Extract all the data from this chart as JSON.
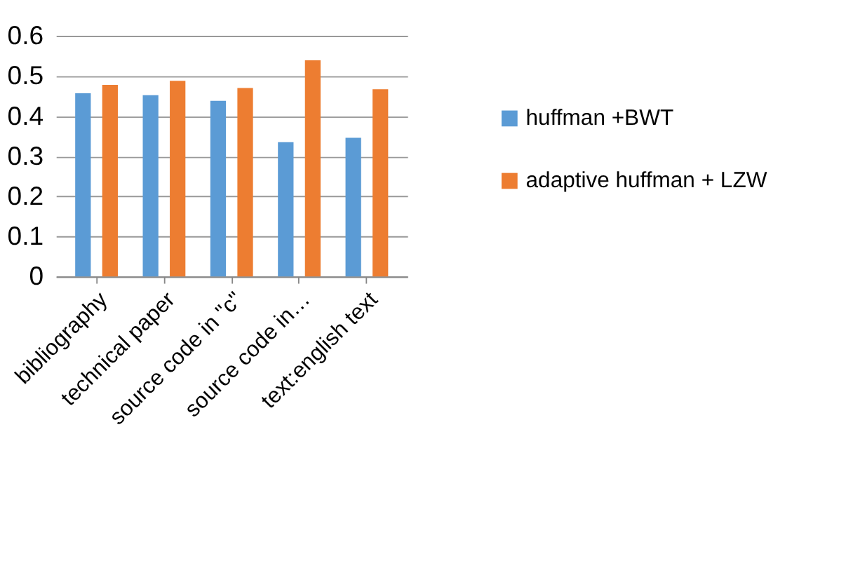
{
  "chart_data": {
    "type": "bar",
    "categories": [
      "bibliography",
      "technical paper",
      "source code in \"c\"",
      "source code in…",
      "text:english text"
    ],
    "series": [
      {
        "name": "huffman +BWT",
        "color": "#5b9bd5",
        "values": [
          0.457,
          0.452,
          0.438,
          0.335,
          0.346
        ]
      },
      {
        "name": "adaptive huffman + LZW",
        "color": "#ed7d31",
        "values": [
          0.478,
          0.488,
          0.47,
          0.539,
          0.467
        ]
      }
    ],
    "ylim": [
      0,
      0.6
    ],
    "yticks": [
      0,
      0.1,
      0.2,
      0.3,
      0.4,
      0.5,
      0.6
    ],
    "grid": "y",
    "legend": "right"
  }
}
